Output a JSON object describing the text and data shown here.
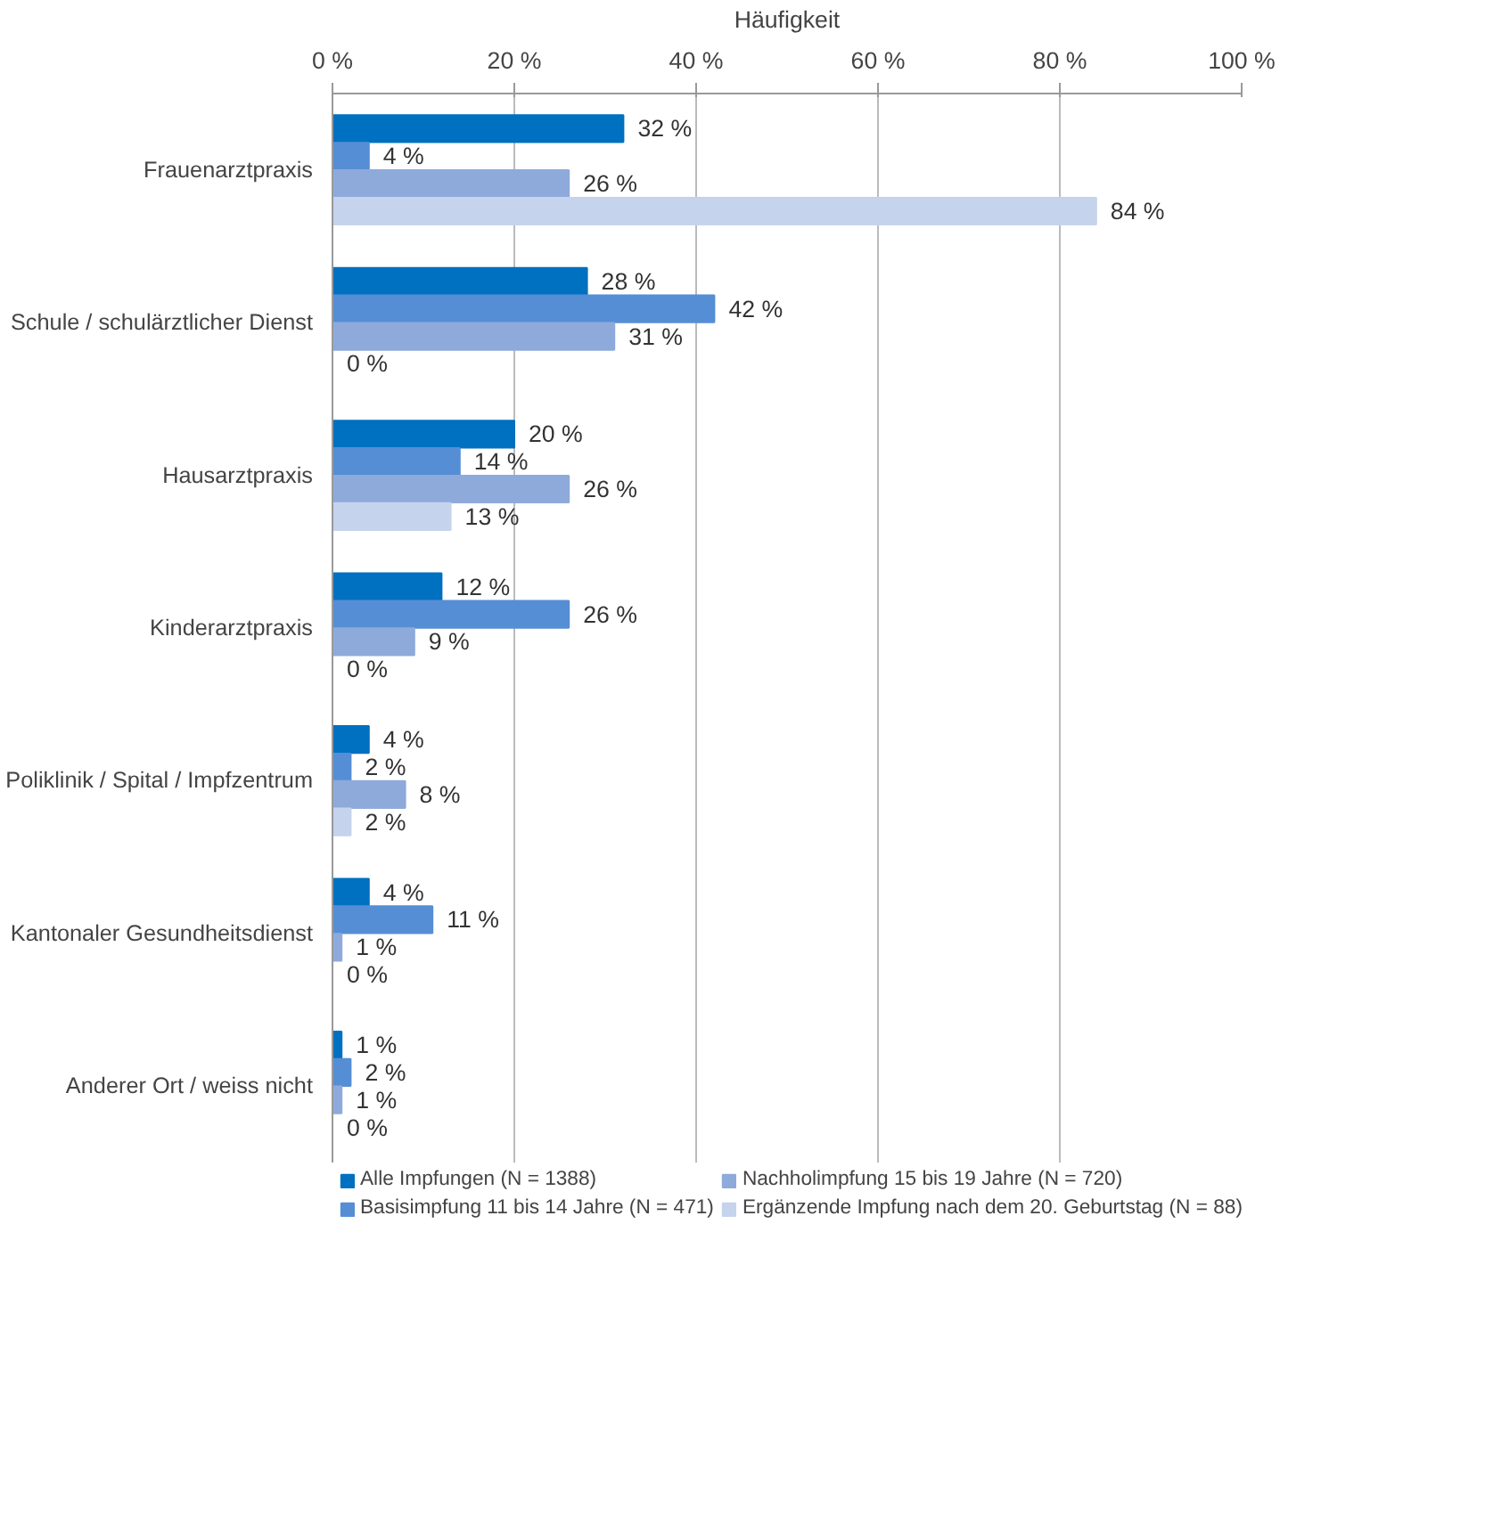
{
  "chart_data": {
    "type": "bar",
    "orientation": "horizontal",
    "xlabel": "Häufigkeit",
    "categories": [
      "Frauenarztpraxis",
      "Schule / schulärztlicher Dienst",
      "Hausarztpraxis",
      "Kinderarztpraxis",
      "Poliklinik / Spital / Impfzentrum",
      "Kantonaler Gesundheitsdienst",
      "Anderer Ort / weiss nicht"
    ],
    "series": [
      {
        "name": "Alle Impfungen (N = 1388)",
        "color": "#0070c0",
        "values": [
          32,
          28,
          20,
          12,
          4,
          4,
          1
        ],
        "value_labels": [
          "32 %",
          "28 %",
          "20 %",
          "12 %",
          "4 %",
          "4 %",
          "1 %"
        ]
      },
      {
        "name": "Basisimpfung 11 bis 14 Jahre (N = 471)",
        "color": "#558ed5",
        "values": [
          4,
          42,
          14,
          26,
          2,
          11,
          2
        ],
        "value_labels": [
          "4 %",
          "42 %",
          "14 %",
          "26 %",
          "2 %",
          "11 %",
          "2 %"
        ]
      },
      {
        "name": "Nachholimpfung 15 bis 19 Jahre (N = 720)",
        "color": "#8eaadb",
        "values": [
          26,
          31,
          26,
          9,
          8,
          1,
          1
        ],
        "value_labels": [
          "26 %",
          "31 %",
          "26 %",
          "9 %",
          "8 %",
          "1 %",
          "1 %"
        ]
      },
      {
        "name": "Ergänzende Impfung nach dem 20. Geburtstag (N = 88)",
        "color": "#c5d3ec",
        "values": [
          84,
          0,
          13,
          0,
          2,
          0,
          0
        ],
        "value_labels": [
          "84 %",
          "0 %",
          "13 %",
          "0 %",
          "2 %",
          "0 %",
          "0 %"
        ]
      }
    ],
    "xlim": [
      0,
      100
    ],
    "xticks": [
      {
        "value": 0,
        "label": "0 %"
      },
      {
        "value": 20,
        "label": "20 %"
      },
      {
        "value": 40,
        "label": "40 %"
      },
      {
        "value": 60,
        "label": "60 %"
      },
      {
        "value": 80,
        "label": "80 %"
      },
      {
        "value": 100,
        "label": "100 %"
      }
    ],
    "grid": "x",
    "legend": "bottom"
  }
}
